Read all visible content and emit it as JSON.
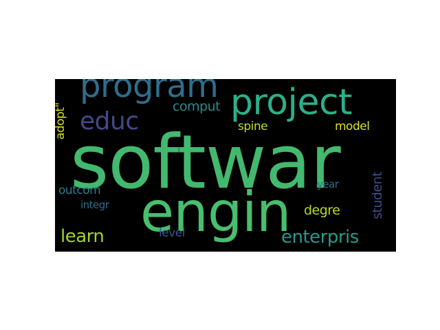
{
  "word_cloud": {
    "background": "#000000",
    "words": [
      {
        "id": "softwar",
        "text": "softwar",
        "color": "#43b96f"
      },
      {
        "id": "engin",
        "text": "engin",
        "color": "#48be6e"
      },
      {
        "id": "program",
        "text": "program",
        "color": "#2f6d8c"
      },
      {
        "id": "project",
        "text": "project",
        "color": "#2bb08a"
      },
      {
        "id": "educ",
        "text": "educ",
        "color": "#434a88"
      },
      {
        "id": "comput",
        "text": "comput",
        "color": "#2d8a8c"
      },
      {
        "id": "spine",
        "text": "spine",
        "color": "#c1dc2d"
      },
      {
        "id": "model",
        "text": "model",
        "color": "#d9e11e"
      },
      {
        "id": "outcom",
        "text": "outcom",
        "color": "#2c7e8e"
      },
      {
        "id": "integr",
        "text": "integr",
        "color": "#2b6f8e"
      },
      {
        "id": "year",
        "text": "year",
        "color": "#2e708d"
      },
      {
        "id": "degre",
        "text": "degre",
        "color": "#b4d829"
      },
      {
        "id": "learn",
        "text": "learn",
        "color": "#9fd234"
      },
      {
        "id": "level",
        "text": "level",
        "color": "#35568b"
      },
      {
        "id": "enterpris",
        "text": "enterpris",
        "color": "#269b8b"
      },
      {
        "id": "adopt",
        "text": "adopt\"",
        "color": "#d8e219"
      },
      {
        "id": "student",
        "text": "student",
        "color": "#3e4b89"
      }
    ]
  }
}
